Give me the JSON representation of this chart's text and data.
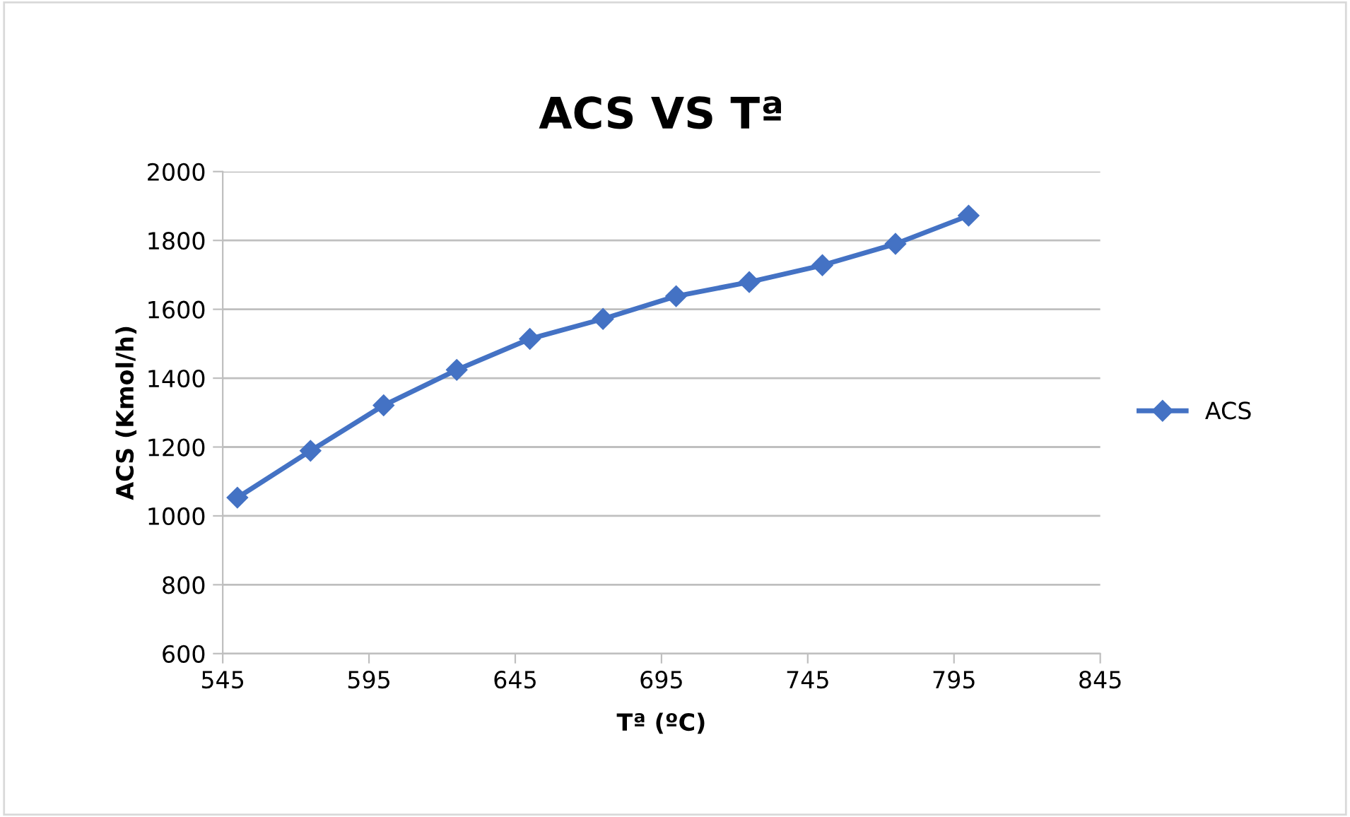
{
  "chart_data": {
    "type": "line",
    "title": "ACS VS Tª",
    "xlabel": "Tª (ºC)",
    "ylabel": "ACS (Kmol/h)",
    "x": [
      550,
      575,
      600,
      625,
      650,
      675,
      700,
      725,
      750,
      775,
      800
    ],
    "series": [
      {
        "name": "ACS",
        "color": "#4472c4",
        "values": [
          1053,
          1189,
          1321,
          1424,
          1514,
          1572,
          1638,
          1679,
          1728,
          1790,
          1872
        ]
      }
    ],
    "xlim": [
      545,
      845
    ],
    "xticks": [
      545,
      595,
      645,
      695,
      745,
      795,
      845
    ],
    "ylim": [
      600,
      2000
    ],
    "yticks": [
      600,
      800,
      1000,
      1200,
      1400,
      1600,
      1800,
      2000
    ],
    "grid": "y",
    "legend": "right",
    "marker": "diamond",
    "line_style": "solid"
  }
}
